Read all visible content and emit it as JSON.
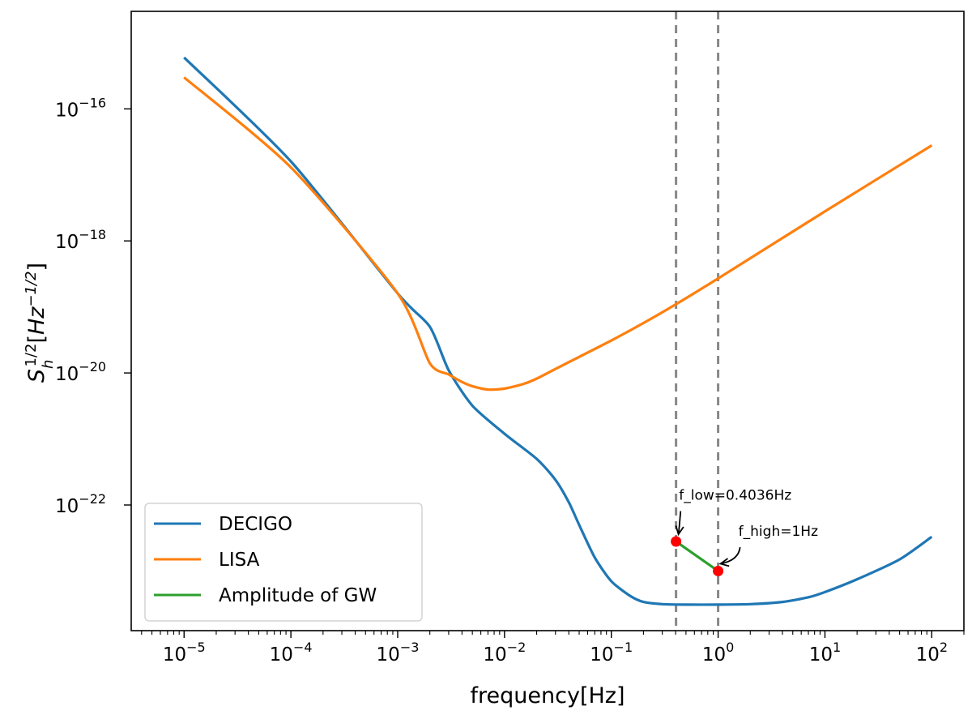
{
  "chart_data": {
    "type": "line",
    "x_scale": "log",
    "y_scale": "log",
    "xlabel": "frequency[Hz]",
    "ylabel": {
      "base": "S",
      "sub": "h",
      "sup": "1/2",
      "open": "[",
      "unit": "Hz",
      "unit_sup": "−1/2",
      "close": "]"
    },
    "xlim": [
      3.2e-06,
      200
    ],
    "ylim": [
      1.25e-24,
      3e-15
    ],
    "x_ticks": [
      {
        "value": 1e-05,
        "base": "10",
        "exp": "−5"
      },
      {
        "value": 0.0001,
        "base": "10",
        "exp": "−4"
      },
      {
        "value": 0.001,
        "base": "10",
        "exp": "−3"
      },
      {
        "value": 0.01,
        "base": "10",
        "exp": "−2"
      },
      {
        "value": 0.1,
        "base": "10",
        "exp": "−1"
      },
      {
        "value": 1,
        "base": "10",
        "exp": "0"
      },
      {
        "value": 10,
        "base": "10",
        "exp": "1"
      },
      {
        "value": 100,
        "base": "10",
        "exp": "2"
      }
    ],
    "y_ticks": [
      {
        "value": 1e-22,
        "base": "10",
        "exp": "−22"
      },
      {
        "value": 1e-20,
        "base": "10",
        "exp": "−20"
      },
      {
        "value": 1e-18,
        "base": "10",
        "exp": "−18"
      },
      {
        "value": 1e-16,
        "base": "10",
        "exp": "−16"
      }
    ],
    "series": [
      {
        "name": "DECIGO",
        "color": "#1f77b4",
        "points": [
          [
            1e-05,
            6e-16
          ],
          [
            0.0001,
            1.6e-17
          ],
          [
            0.001,
            1.6e-19
          ],
          [
            0.002,
            5e-20
          ],
          [
            0.003,
            1.1e-20
          ],
          [
            0.005,
            3.2e-21
          ],
          [
            0.01,
            1.2e-21
          ],
          [
            0.02,
            5e-22
          ],
          [
            0.03,
            2.4e-22
          ],
          [
            0.04,
            1.1e-22
          ],
          [
            0.05,
            5e-23
          ],
          [
            0.07,
            1.6e-23
          ],
          [
            0.1,
            7e-24
          ],
          [
            0.15,
            4.2e-24
          ],
          [
            0.2,
            3.4e-24
          ],
          [
            0.3,
            3.15e-24
          ],
          [
            0.5,
            3.1e-24
          ],
          [
            1,
            3.1e-24
          ],
          [
            2,
            3.15e-24
          ],
          [
            4,
            3.4e-24
          ],
          [
            7,
            4e-24
          ],
          [
            10,
            4.8e-24
          ],
          [
            20,
            7.5e-24
          ],
          [
            50,
            1.5e-23
          ],
          [
            100,
            3.3e-23
          ]
        ]
      },
      {
        "name": "LISA",
        "color": "#ff7f0e",
        "points": [
          [
            1e-05,
            3e-16
          ],
          [
            0.0001,
            1.3e-17
          ],
          [
            0.001,
            1.6e-19
          ],
          [
            0.002,
            1.4e-20
          ],
          [
            0.003,
            9.5e-21
          ],
          [
            0.004,
            7.3e-21
          ],
          [
            0.005,
            6.3e-21
          ],
          [
            0.007,
            5.6e-21
          ],
          [
            0.01,
            5.8e-21
          ],
          [
            0.015,
            6.8e-21
          ],
          [
            0.02,
            8.2e-21
          ],
          [
            0.03,
            1.15e-20
          ],
          [
            0.05,
            1.75e-20
          ],
          [
            0.1,
            3.1e-20
          ],
          [
            0.2,
            5.7e-20
          ],
          [
            0.4036,
            1.1e-19
          ],
          [
            1,
            2.7e-19
          ],
          [
            10,
            2.8e-18
          ],
          [
            100,
            2.8e-17
          ]
        ]
      },
      {
        "name": "Amplitude of GW",
        "color": "#2ca02c",
        "points": [
          [
            0.4036,
            2.8e-23
          ],
          [
            1,
            1e-23
          ]
        ]
      }
    ],
    "markers": [
      {
        "x": 0.4036,
        "y": 2.8e-23,
        "color": "#ff0000"
      },
      {
        "x": 1,
        "y": 1e-23,
        "color": "#ff0000"
      }
    ],
    "vlines": [
      {
        "x": 0.4036,
        "color": "#888888",
        "style": "dashed"
      },
      {
        "x": 1,
        "color": "#888888",
        "style": "dashed"
      }
    ],
    "annotations": [
      {
        "text": "f_low=0.4036Hz",
        "x": 0.4036,
        "y": 2.8e-23,
        "text_x": 0.43,
        "text_y": 1.2e-22
      },
      {
        "text": "f_high=1Hz",
        "x": 1,
        "y": 1e-23,
        "text_x": 1.55,
        "text_y": 3.4e-23
      }
    ],
    "legend": {
      "position": "lower-left",
      "entries": [
        "DECIGO",
        "LISA",
        "Amplitude of GW"
      ]
    }
  }
}
